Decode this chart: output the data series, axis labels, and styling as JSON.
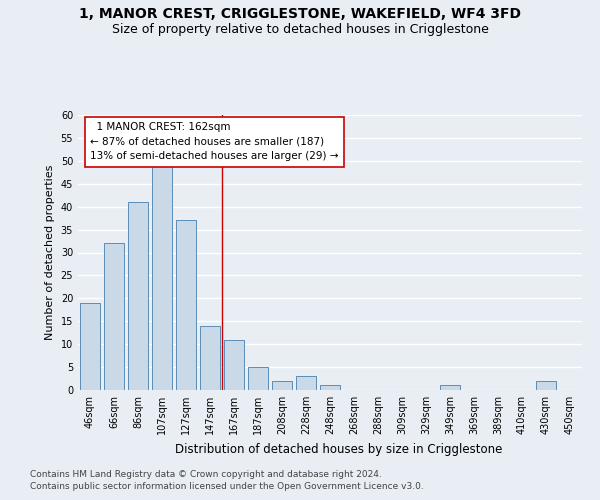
{
  "title_line1": "1, MANOR CREST, CRIGGLESTONE, WAKEFIELD, WF4 3FD",
  "title_line2": "Size of property relative to detached houses in Crigglestone",
  "xlabel": "Distribution of detached houses by size in Crigglestone",
  "ylabel": "Number of detached properties",
  "categories": [
    "46sqm",
    "66sqm",
    "86sqm",
    "107sqm",
    "127sqm",
    "147sqm",
    "167sqm",
    "187sqm",
    "208sqm",
    "228sqm",
    "248sqm",
    "268sqm",
    "288sqm",
    "309sqm",
    "329sqm",
    "349sqm",
    "369sqm",
    "389sqm",
    "410sqm",
    "430sqm",
    "450sqm"
  ],
  "values": [
    19,
    32,
    41,
    49,
    37,
    14,
    11,
    5,
    2,
    3,
    1,
    0,
    0,
    0,
    0,
    1,
    0,
    0,
    0,
    2,
    0
  ],
  "bar_color": "#c9d9e8",
  "bar_edge_color": "#5b8db8",
  "background_color": "#e8eef4",
  "grid_color": "#ffffff",
  "vline_x": 5.5,
  "vline_color": "#cc0000",
  "annotation_line1": "  1 MANOR CREST: 162sqm",
  "annotation_line2": "← 87% of detached houses are smaller (187)",
  "annotation_line3": "13% of semi-detached houses are larger (29) →",
  "annotation_box_color": "#ffffff",
  "annotation_box_edgecolor": "#cc0000",
  "ylim": [
    0,
    60
  ],
  "yticks": [
    0,
    5,
    10,
    15,
    20,
    25,
    30,
    35,
    40,
    45,
    50,
    55,
    60
  ],
  "footnote1": "Contains HM Land Registry data © Crown copyright and database right 2024.",
  "footnote2": "Contains public sector information licensed under the Open Government Licence v3.0.",
  "title_fontsize": 10,
  "subtitle_fontsize": 9,
  "axis_label_fontsize": 8,
  "tick_fontsize": 7,
  "annotation_fontsize": 7.5,
  "footnote_fontsize": 6.5
}
